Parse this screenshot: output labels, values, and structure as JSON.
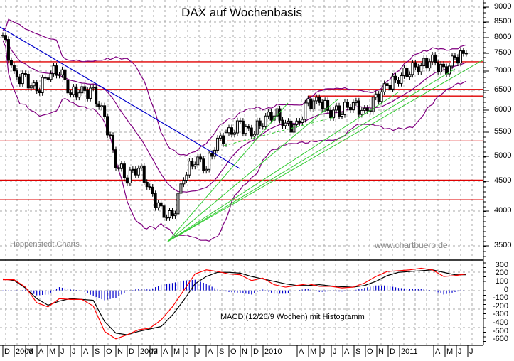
{
  "chart_data": [
    {
      "type": "line",
      "subtype": "candlestick-weekly",
      "title": "DAX auf Wochenbasis",
      "xlabel": "",
      "ylabel": "",
      "y_scale": "log",
      "ylim": [
        3450,
        9100
      ],
      "y_ticks": [
        3500,
        4000,
        4500,
        5000,
        5500,
        6000,
        6500,
        7000,
        7500,
        8000,
        8500,
        9000
      ],
      "x_ticks": [
        "D",
        "2008",
        "M",
        "A",
        "M",
        "J",
        "J",
        "A",
        "S",
        "O",
        "N",
        "D",
        "2009",
        "M",
        "A",
        "M",
        "J",
        "J",
        "A",
        "S",
        "O",
        "N",
        "D",
        "2010",
        "A",
        "M",
        "J",
        "J",
        "A",
        "S",
        "O",
        "N",
        "D",
        "2011",
        "A",
        "M",
        "J",
        "J"
      ],
      "grid": true,
      "horizontal_resistance_lines": [
        7250,
        6500,
        6330,
        5300,
        4540,
        4200
      ],
      "series": [
        {
          "name": "DAX weekly close (approx.)",
          "color": "#000000",
          "x": [
            "2007-12",
            "2008-01",
            "2008-02",
            "2008-03",
            "2008-04",
            "2008-05",
            "2008-06",
            "2008-07",
            "2008-08",
            "2008-09",
            "2008-10",
            "2008-11",
            "2008-12",
            "2009-01",
            "2009-02",
            "2009-03",
            "2009-04",
            "2009-05",
            "2009-06",
            "2009-07",
            "2009-08",
            "2009-09",
            "2009-10",
            "2009-11",
            "2009-12",
            "2010-01",
            "2010-02",
            "2010-03",
            "2010-04",
            "2010-05",
            "2010-06",
            "2010-07",
            "2010-08",
            "2010-09",
            "2010-10",
            "2010-11",
            "2010-12",
            "2011-01",
            "2011-02",
            "2011-03",
            "2011-04",
            "2011-05"
          ],
          "values": [
            8050,
            6850,
            6750,
            6450,
            6900,
            7050,
            6400,
            6450,
            6400,
            5800,
            4850,
            4600,
            4800,
            4350,
            4000,
            3900,
            4600,
            4950,
            4800,
            5300,
            5450,
            5650,
            5450,
            5750,
            5950,
            5650,
            5600,
            6150,
            6200,
            5950,
            6000,
            6150,
            5900,
            6250,
            6600,
            6800,
            7050,
            7150,
            7300,
            6950,
            7350,
            7500
          ]
        },
        {
          "name": "Bollinger Band upper",
          "color": "#800080"
        },
        {
          "name": "Bollinger Band middle",
          "color": "#800080"
        },
        {
          "name": "Bollinger Band lower",
          "color": "#800080"
        },
        {
          "name": "Downtrend line",
          "color": "#0000cc",
          "from": [
            "2007-12",
            8400
          ],
          "to": [
            "2009-08",
            4900
          ]
        },
        {
          "name": "Uptrend lines",
          "color": "#33cc33"
        }
      ]
    },
    {
      "type": "line",
      "title": "MACD (12/26/9 Wochen) mit Histogramm",
      "ylim": [
        -650,
        330
      ],
      "y_ticks": [
        300,
        200,
        100,
        0,
        -100,
        -200,
        -300,
        -400,
        -500,
        -600
      ],
      "grid": true,
      "series": [
        {
          "name": "MACD",
          "color": "#ff0000",
          "values": [
            130,
            130,
            40,
            -150,
            -200,
            -100,
            -110,
            -110,
            -190,
            -500,
            -590,
            -540,
            -480,
            -460,
            -360,
            -200,
            0,
            200,
            250,
            230,
            200,
            190,
            120,
            150,
            70,
            40,
            60,
            80,
            50,
            50,
            30,
            40,
            90,
            170,
            230,
            240,
            250,
            270,
            250,
            170,
            180,
            200
          ]
        },
        {
          "name": "Signal",
          "color": "#000000",
          "values": [
            140,
            120,
            30,
            -100,
            -180,
            -130,
            -100,
            -110,
            -120,
            -380,
            -520,
            -540,
            -500,
            -470,
            -440,
            -300,
            -120,
            80,
            170,
            220,
            220,
            210,
            170,
            140,
            110,
            80,
            60,
            60,
            70,
            55,
            45,
            40,
            60,
            110,
            180,
            220,
            230,
            240,
            250,
            220,
            190,
            190
          ]
        },
        {
          "name": "Histogramm",
          "color": "#0000cc",
          "values": [
            -10,
            -10,
            10,
            -60,
            -50,
            40,
            10,
            0,
            -70,
            -120,
            -90,
            -10,
            20,
            10,
            70,
            90,
            120,
            130,
            80,
            10,
            -20,
            -30,
            -50,
            10,
            -40,
            -40,
            0,
            20,
            -20,
            -10,
            -15,
            0,
            30,
            60,
            60,
            30,
            20,
            20,
            0,
            -50,
            -20,
            10
          ]
        }
      ]
    }
  ],
  "title": "DAX auf Wochenbasis",
  "watermark_left": "Hoppenstedt Charts",
  "watermark_right": "www.chartbuero.de",
  "macd_label": "MACD (12/26/9 Wochen) mit Histogramm",
  "price_axis_labels": [
    "9000",
    "8500",
    "8000",
    "7500",
    "7000",
    "6500",
    "6000",
    "5500",
    "5000",
    "4500",
    "4000",
    "3500"
  ],
  "macd_axis_labels": [
    "300",
    "200",
    "100",
    "0",
    "-100",
    "-200",
    "-300",
    "-400",
    "-500",
    "-600"
  ],
  "month_labels": [
    "D",
    "2008",
    "M",
    "A",
    "M",
    "J",
    "J",
    "A",
    "S",
    "O",
    "N",
    "D",
    "2009",
    "M",
    "A",
    "M",
    "J",
    "J",
    "A",
    "S",
    "O",
    "N",
    "D",
    "2010",
    "A",
    "M",
    "J",
    "J",
    "A",
    "S",
    "O",
    "N",
    "D",
    "2011",
    "A",
    "M",
    "J",
    "J"
  ],
  "colors": {
    "candle": "#000000",
    "bollinger": "#800080",
    "resistance": "#e00000",
    "downtrend": "#0000cc",
    "uptrend": "#33cc33",
    "macd": "#ff0000",
    "signal": "#000000",
    "histogram": "#0000cc",
    "grid": "#a8a8a8"
  }
}
